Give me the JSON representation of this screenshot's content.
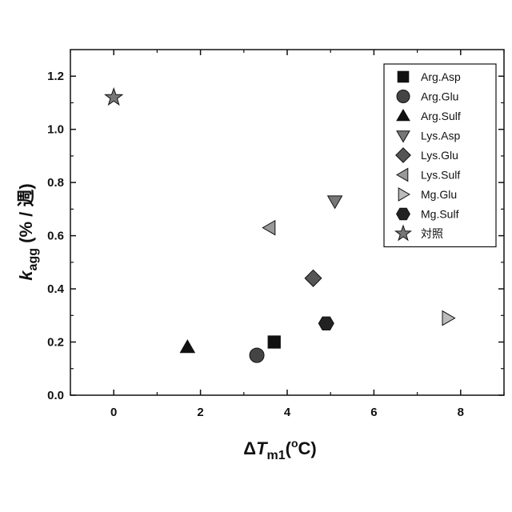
{
  "chart_data": {
    "type": "scatter",
    "xlabel": {
      "delta": "Δ",
      "var": "T",
      "sub": "m1",
      "unit_open": "(",
      "unit_sup": "o",
      "unit_rest": "C)"
    },
    "ylabel": {
      "var": "k",
      "sub": "agg",
      "unit": " (% / 週)"
    },
    "xlim": [
      -1,
      9
    ],
    "ylim": [
      0,
      1.3
    ],
    "x_ticks": [
      0,
      2,
      4,
      6,
      8
    ],
    "y_ticks": [
      0.0,
      0.2,
      0.4,
      0.6,
      0.8,
      1.0,
      1.2
    ],
    "y_tick_labels": [
      "0.0",
      "0.2",
      "0.4",
      "0.6",
      "0.8",
      "1.0",
      "1.2"
    ],
    "grid": false,
    "legend_position": "top-right",
    "series": [
      {
        "name": "Arg.Asp",
        "marker": "square",
        "color": "#111111",
        "x": [
          3.7
        ],
        "y": [
          0.2
        ]
      },
      {
        "name": "Arg.Glu",
        "marker": "circle",
        "color": "#444444",
        "x": [
          3.3
        ],
        "y": [
          0.15
        ]
      },
      {
        "name": "Arg.Sulf",
        "marker": "triangle-up",
        "color": "#111111",
        "x": [
          1.7
        ],
        "y": [
          0.18
        ]
      },
      {
        "name": "Lys.Asp",
        "marker": "triangle-down",
        "color": "#777777",
        "x": [
          5.1
        ],
        "y": [
          0.73
        ]
      },
      {
        "name": "Lys.Glu",
        "marker": "diamond",
        "color": "#555555",
        "x": [
          4.6
        ],
        "y": [
          0.44
        ]
      },
      {
        "name": "Lys.Sulf",
        "marker": "triangle-left",
        "color": "#999999",
        "x": [
          3.6
        ],
        "y": [
          0.63
        ]
      },
      {
        "name": "Mg.Glu",
        "marker": "triangle-right",
        "color": "#bbbbbb",
        "x": [
          7.7
        ],
        "y": [
          0.29
        ]
      },
      {
        "name": "Mg.Sulf",
        "marker": "hexagon",
        "color": "#222222",
        "x": [
          4.9
        ],
        "y": [
          0.27
        ]
      },
      {
        "name": "対照",
        "marker": "star",
        "color": "#777777",
        "x": [
          0.0
        ],
        "y": [
          1.12
        ]
      }
    ]
  }
}
